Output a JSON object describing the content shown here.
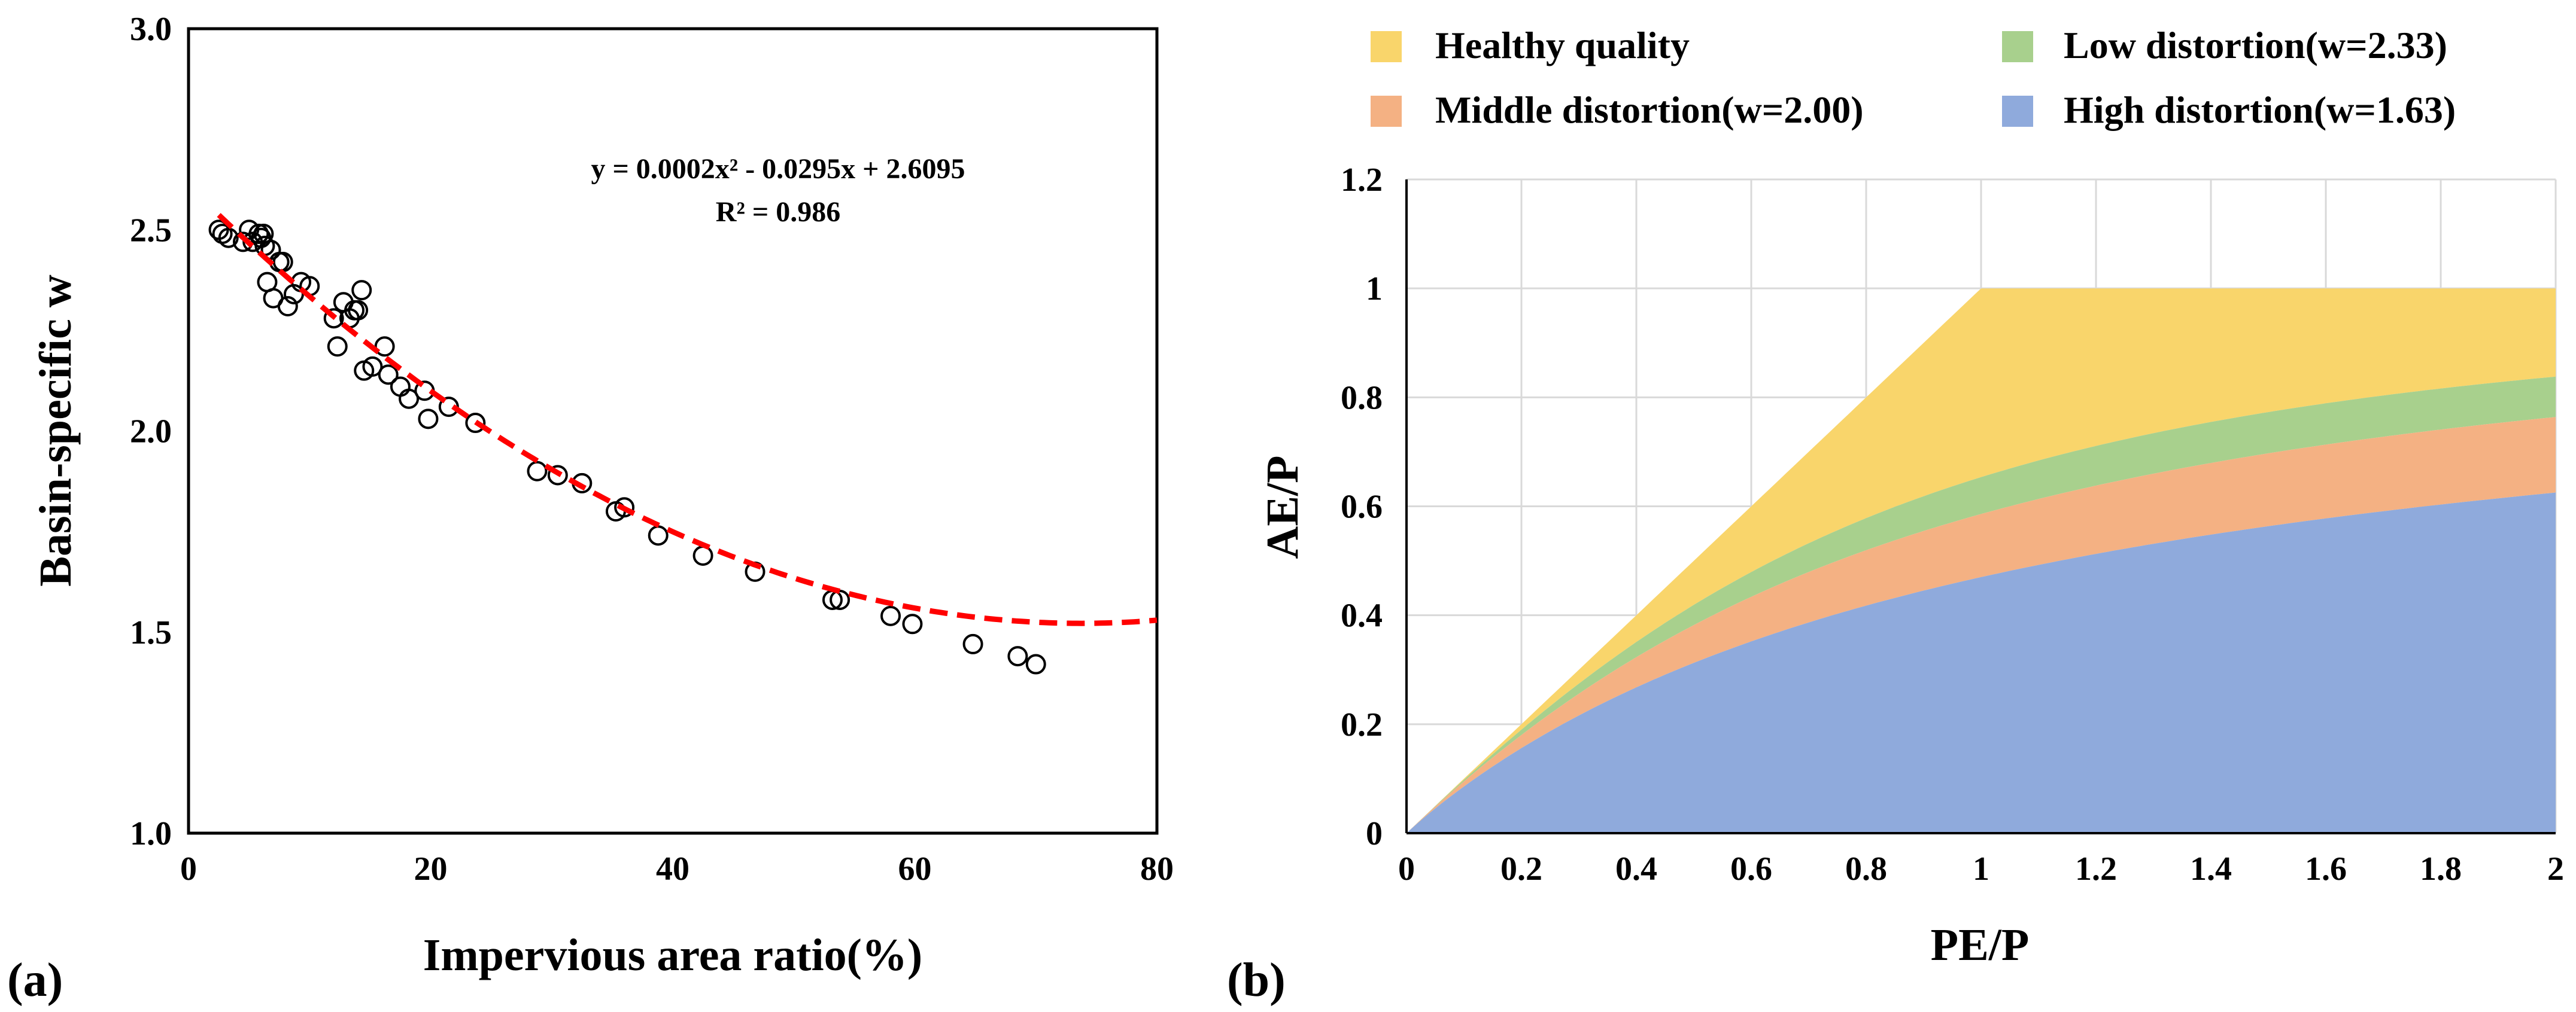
{
  "chart_data": [
    {
      "type": "scatter",
      "panel_label": "(a)",
      "xlabel": "Impervious area ratio(%)",
      "ylabel": "Basin-specific w",
      "xlim": [
        0,
        80
      ],
      "ylim": [
        1.0,
        3.0
      ],
      "xticks": [
        "0",
        "20",
        "40",
        "60",
        "80"
      ],
      "yticks": [
        "1.0",
        "1.5",
        "2.0",
        "2.5",
        "3.0"
      ],
      "grid": false,
      "points": {
        "x": [
          2.5,
          2.8,
          3.3,
          4.5,
          5.0,
          5.3,
          5.8,
          6.0,
          6.2,
          6.3,
          6.5,
          6.8,
          7.0,
          7.5,
          7.8,
          8.2,
          8.7,
          9.3,
          10.0,
          12.0,
          12.3,
          12.8,
          13.3,
          13.7,
          14.0,
          14.3,
          14.5,
          15.2,
          16.2,
          16.5,
          17.5,
          18.2,
          19.5,
          19.8,
          21.5,
          23.7,
          28.8,
          30.5,
          32.5,
          35.3,
          36.0,
          38.8,
          42.5,
          46.8,
          53.2,
          53.8,
          58.0,
          59.8,
          64.8,
          68.5,
          70.0
        ],
        "y": [
          2.5,
          2.49,
          2.48,
          2.47,
          2.5,
          2.47,
          2.49,
          2.48,
          2.49,
          2.46,
          2.37,
          2.45,
          2.33,
          2.42,
          2.42,
          2.31,
          2.34,
          2.37,
          2.36,
          2.28,
          2.21,
          2.32,
          2.28,
          2.3,
          2.3,
          2.35,
          2.15,
          2.16,
          2.21,
          2.14,
          2.11,
          2.08,
          2.1,
          2.03,
          2.06,
          2.02,
          1.9,
          1.89,
          1.87,
          1.8,
          1.81,
          1.74,
          1.69,
          1.65,
          1.58,
          1.58,
          1.54,
          1.52,
          1.47,
          1.44,
          1.42
        ]
      },
      "fit": {
        "a": 0.0002,
        "b": -0.0295,
        "c": 2.6095,
        "x_range": [
          2.5,
          80
        ]
      },
      "annotation": [
        "y = 0.0002x² - 0.0295x + 2.6095",
        "R² = 0.986"
      ],
      "colors": {
        "fit": "#ff0000",
        "marker_stroke": "#000000"
      }
    },
    {
      "type": "area",
      "panel_label": "(b)",
      "xlabel": "PE/P",
      "ylabel": "AE/P",
      "xlim": [
        0,
        2
      ],
      "ylim": [
        0,
        1.2
      ],
      "xticks": [
        "0",
        "0.2",
        "0.4",
        "0.6",
        "0.8",
        "1",
        "1.2",
        "1.4",
        "1.6",
        "1.8",
        "2"
      ],
      "yticks": [
        "0",
        "0.2",
        "0.4",
        "0.6",
        "0.8",
        "1",
        "1.2"
      ],
      "grid": true,
      "legend_position": "top",
      "series": [
        {
          "name": "Healthy quality",
          "kind": "budyko-limit",
          "color": "#f9d56b"
        },
        {
          "name": "Low distortion(w=2.33)",
          "w": 2.33,
          "color": "#a8d08d"
        },
        {
          "name": "Middle distortion(w=2.00)",
          "w": 2.0,
          "color": "#f4b183"
        },
        {
          "name": "High distortion(w=1.63)",
          "w": 1.63,
          "color": "#8faadc"
        }
      ],
      "legend_order": [
        "Healthy quality",
        "Low distortion(w=2.33)",
        "Middle distortion(w=2.00)",
        "High distortion(w=1.63)"
      ]
    }
  ]
}
